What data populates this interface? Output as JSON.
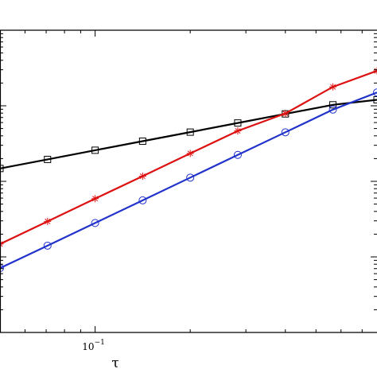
{
  "chart_data": {
    "type": "line",
    "title": "",
    "xlabel": "τ",
    "ylabel": "",
    "xscale": "log",
    "yscale": "log",
    "xlim": [
      0.05,
      0.78
    ],
    "ylim": [
      0.0001,
      1
    ],
    "grid": false,
    "tick_labels": {
      "x": [
        {
          "value": 0.1,
          "base": "10",
          "exp": "−1"
        }
      ]
    },
    "series": [
      {
        "color": "#000000",
        "marker": "square",
        "x": [
          0.05,
          0.0707,
          0.1,
          0.1414,
          0.2,
          0.2828,
          0.4,
          0.5657,
          0.78
        ],
        "y": [
          0.0148,
          0.0195,
          0.0258,
          0.034,
          0.0448,
          0.0592,
          0.0781,
          0.103,
          0.12
        ]
      },
      {
        "color": "#dd1111",
        "marker": "asterisk",
        "x": [
          0.05,
          0.0707,
          0.1,
          0.1414,
          0.2,
          0.2828,
          0.4,
          0.5657,
          0.78
        ],
        "y": [
          0.00148,
          0.00295,
          0.0059,
          0.0117,
          0.0234,
          0.0465,
          0.0791,
          0.178,
          0.29
        ]
      },
      {
        "color": "#2233cc",
        "marker": "circle",
        "x": [
          0.05,
          0.0707,
          0.1,
          0.1414,
          0.2,
          0.2828,
          0.4,
          0.5657,
          0.78
        ],
        "y": [
          0.00071,
          0.00141,
          0.00281,
          0.0056,
          0.0112,
          0.0224,
          0.0446,
          0.089,
          0.15
        ]
      }
    ]
  }
}
